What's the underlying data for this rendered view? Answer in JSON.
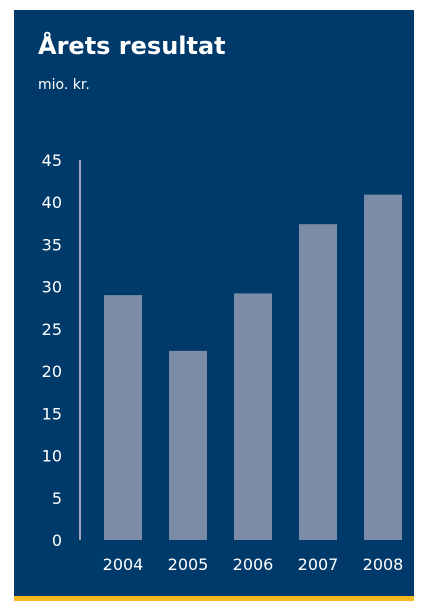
{
  "title": "Årets resultat",
  "subtitle": "mio. kr.",
  "colors": {
    "background": "#003a6b",
    "bar": "#7a8ca6",
    "axis": "#9aa7b8",
    "text": "#ffffff",
    "accent": "#f5b820"
  },
  "chart_data": {
    "type": "bar",
    "title": "Årets resultat",
    "subtitle": "mio. kr.",
    "xlabel": "",
    "ylabel": "",
    "categories": [
      "2004",
      "2005",
      "2006",
      "2007",
      "2008"
    ],
    "values": [
      29.0,
      22.4,
      29.2,
      37.4,
      40.9
    ],
    "ylim": [
      0,
      45
    ],
    "yticks": [
      0,
      5,
      10,
      15,
      20,
      25,
      30,
      35,
      40,
      45
    ],
    "grid": false,
    "legend": "none"
  }
}
